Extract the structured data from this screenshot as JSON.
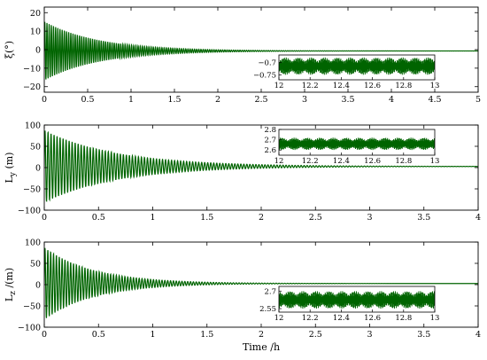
{
  "chart_data": [
    {
      "type": "line",
      "ylabel": "ξ(°)",
      "xlabel": "",
      "xlim": [
        0,
        5
      ],
      "ylim": [
        -23,
        23
      ],
      "xticks": [
        "0",
        "0.5",
        "1",
        "1.5",
        "2",
        "2.5",
        "3",
        "3.5",
        "4",
        "4.5",
        "5"
      ],
      "yticks": [
        "20",
        "10",
        "0",
        "−10",
        "−20"
      ],
      "ytick_values": [
        20,
        10,
        0,
        -10,
        -20
      ],
      "series": [
        {
          "color": "#006400",
          "oscillation": {
            "start": 0,
            "initial_amplitude": 16,
            "frequency_per_h": 40,
            "steady_value": -0.7,
            "decay": 1.6
          }
        }
      ],
      "inset": {
        "xlim": [
          12,
          13
        ],
        "ylim": [
          -0.77,
          -0.67
        ],
        "xticks": [
          "12",
          "12.2",
          "12.4",
          "12.6",
          "12.8",
          "13"
        ],
        "yticks": [
          "−0.7",
          "−0.75"
        ],
        "ytick_values": [
          -0.7,
          -0.75
        ],
        "band": [
          -0.75,
          -0.68
        ]
      }
    },
    {
      "type": "line",
      "ylabel": "L_y (m)",
      "xlabel": "",
      "xlim": [
        0,
        4
      ],
      "ylim": [
        -100,
        100
      ],
      "xticks": [
        "0",
        "0.5",
        "1",
        "1.5",
        "2",
        "2.5",
        "3",
        "3.5",
        "4"
      ],
      "yticks": [
        "100",
        "50",
        "0",
        "−50",
        "−100"
      ],
      "ytick_values": [
        100,
        50,
        0,
        -50,
        -100
      ],
      "series": [
        {
          "color": "#006400",
          "oscillation": {
            "start": 0,
            "initial_amplitude": 85,
            "frequency_per_h": 36,
            "steady_value": 2.65,
            "decay": 1.5
          }
        }
      ],
      "inset": {
        "xlim": [
          12,
          13
        ],
        "ylim": [
          2.55,
          2.8
        ],
        "xticks": [
          "12",
          "12.2",
          "12.4",
          "12.6",
          "12.8",
          "13"
        ],
        "yticks": [
          "2.8",
          "2.7",
          "2.6"
        ],
        "ytick_values": [
          2.8,
          2.7,
          2.6
        ],
        "band": [
          2.6,
          2.72
        ]
      }
    },
    {
      "type": "line",
      "ylabel": "L_z /(m)",
      "xlabel": "Time /h",
      "xlim": [
        0,
        4
      ],
      "ylim": [
        -100,
        100
      ],
      "xticks": [
        "0",
        "0.5",
        "1",
        "1.5",
        "2",
        "2.5",
        "3",
        "3.5",
        "4"
      ],
      "yticks": [
        "100",
        "50",
        "0",
        "−50",
        "−100"
      ],
      "ytick_values": [
        100,
        50,
        0,
        -50,
        -100
      ],
      "series": [
        {
          "color": "#006400",
          "oscillation": {
            "start": 0,
            "initial_amplitude": 85,
            "frequency_per_h": 38,
            "steady_value": 2.6,
            "decay": 2.2
          }
        }
      ],
      "inset": {
        "xlim": [
          12,
          13
        ],
        "ylim": [
          2.52,
          2.74
        ],
        "xticks": [
          "12",
          "12.2",
          "12.4",
          "12.6",
          "12.8",
          "13"
        ],
        "yticks": [
          "2.7",
          "2.55"
        ],
        "ytick_values": [
          2.7,
          2.55
        ],
        "band": [
          2.55,
          2.7
        ]
      }
    }
  ]
}
